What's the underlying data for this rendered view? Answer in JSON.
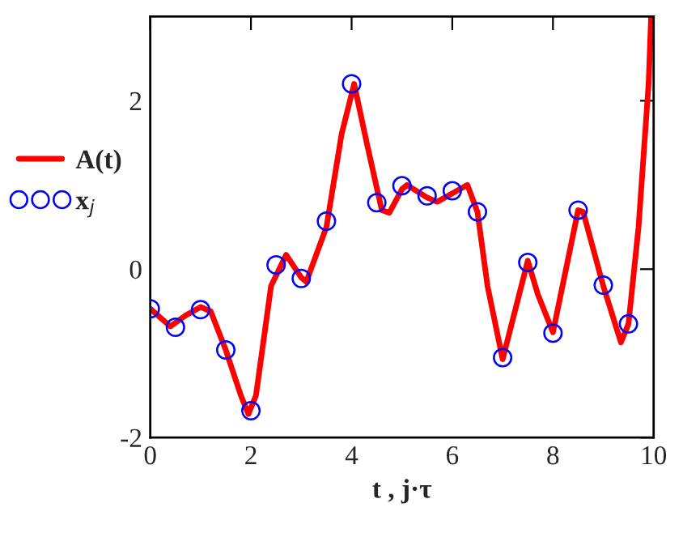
{
  "chart_data": {
    "type": "line",
    "xlabel": "t , j·τ",
    "xlim": [
      0,
      10
    ],
    "xticks": [
      0,
      2,
      4,
      6,
      8,
      10
    ],
    "ylim": [
      -2,
      3
    ],
    "yticks": [
      -2,
      0,
      2
    ],
    "grid": false,
    "legend": "left",
    "series": [
      {
        "name": "A(t)",
        "color": "#ff0000",
        "marker": "none",
        "line_style": "solid",
        "x": [
          0,
          0.4,
          0.7,
          1.0,
          1.2,
          1.5,
          1.8,
          1.95,
          2.1,
          2.4,
          2.7,
          3.0,
          3.1,
          3.5,
          3.8,
          4.05,
          4.3,
          4.6,
          4.75,
          5.0,
          5.1,
          5.5,
          5.7,
          6.0,
          6.3,
          6.5,
          6.7,
          7.0,
          7.5,
          7.7,
          8.0,
          8.5,
          8.6,
          9.0,
          9.35,
          9.5,
          9.7,
          9.9,
          9.95
        ],
        "values": [
          -0.47,
          -0.68,
          -0.55,
          -0.45,
          -0.5,
          -0.96,
          -1.5,
          -1.72,
          -1.5,
          -0.2,
          0.17,
          -0.1,
          -0.15,
          0.5,
          1.6,
          2.2,
          1.5,
          0.7,
          0.67,
          0.95,
          1.0,
          0.85,
          0.8,
          0.9,
          1.0,
          0.68,
          -0.2,
          -1.07,
          0.1,
          -0.3,
          -0.75,
          0.7,
          0.68,
          -0.2,
          -0.87,
          -0.65,
          0.5,
          2.2,
          3.0
        ]
      },
      {
        "name": "x$_{j}$",
        "type": "scatter",
        "color": "#0000ff",
        "marker": "circle",
        "x": [
          0,
          0.5,
          1,
          1.5,
          2,
          2.5,
          3,
          3.5,
          4,
          4.5,
          5,
          5.5,
          6,
          6.5,
          7,
          7.5,
          8,
          8.5,
          9,
          9.5
        ],
        "values": [
          -0.47,
          -0.69,
          -0.48,
          -0.96,
          -1.68,
          0.05,
          -0.11,
          0.57,
          2.2,
          0.79,
          0.99,
          0.87,
          0.93,
          0.68,
          -1.05,
          0.08,
          -0.76,
          0.7,
          -0.19,
          -0.65
        ]
      }
    ]
  }
}
